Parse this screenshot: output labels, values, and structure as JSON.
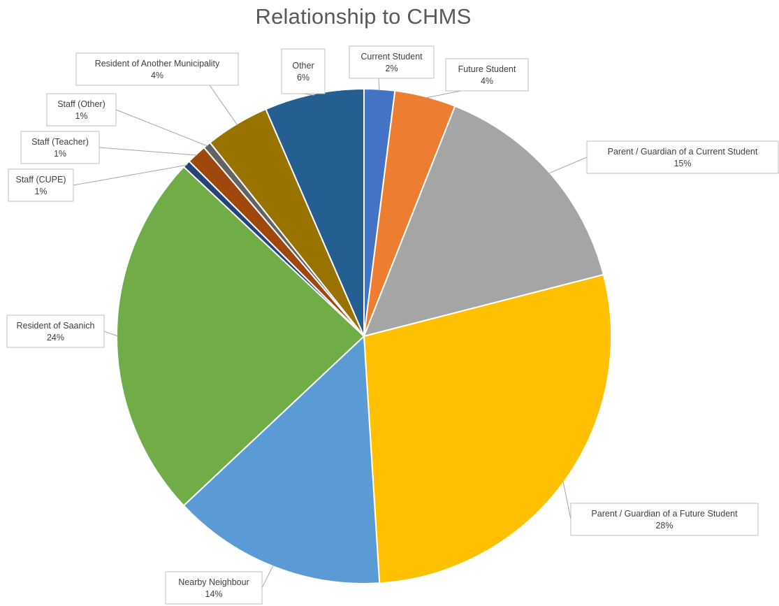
{
  "chart_data": {
    "type": "pie",
    "title": "Relationship to CHMS",
    "slices": [
      {
        "label": "Current Student",
        "value": 2,
        "value_label": "2%",
        "color": "#4472c4"
      },
      {
        "label": "Future Student",
        "value": 4,
        "value_label": "4%",
        "color": "#ed7d31"
      },
      {
        "label": "Parent / Guardian of a Current Student",
        "value": 15,
        "value_label": "15%",
        "color": "#a5a5a5"
      },
      {
        "label": "Parent / Guardian of a Future Student",
        "value": 28,
        "value_label": "28%",
        "color": "#ffc000"
      },
      {
        "label": "Nearby Neighbour",
        "value": 14,
        "value_label": "14%",
        "color": "#5b9bd5"
      },
      {
        "label": "Resident of Saanich",
        "value": 24,
        "value_label": "24%",
        "color": "#70ad47"
      },
      {
        "label": "Staff (CUPE)",
        "value": 0.5,
        "value_label": "1%",
        "color": "#264478"
      },
      {
        "label": "Staff (Teacher)",
        "value": 1.3,
        "value_label": "1%",
        "color": "#9e480e"
      },
      {
        "label": "Staff (Other)",
        "value": 0.5,
        "value_label": "1%",
        "color": "#636363"
      },
      {
        "label": "Resident of Another Municipality",
        "value": 4.2,
        "value_label": "4%",
        "color": "#997300"
      },
      {
        "label": "Other",
        "value": 6.5,
        "value_label": "6%",
        "color": "#255e91"
      }
    ],
    "start_angle": "12 o'clock",
    "direction": "clockwise",
    "legend": "none",
    "data_labels": "outside with leader lines"
  }
}
